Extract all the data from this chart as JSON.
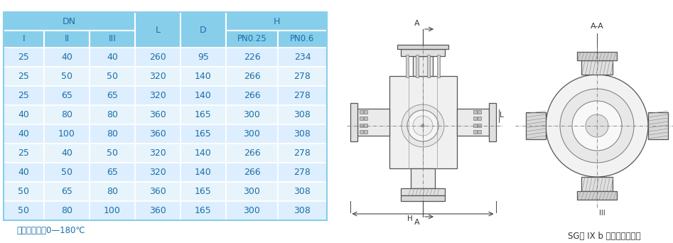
{
  "header_bg": "#87CEEB",
  "row_bg1": "#ddeeff",
  "row_bg2": "#e8f4fb",
  "text_color": "#1a6fa8",
  "note_text": "注：工作温度0—180℃",
  "rows": [
    [
      25,
      40,
      40,
      260,
      95,
      226,
      234
    ],
    [
      25,
      50,
      50,
      320,
      140,
      266,
      278
    ],
    [
      25,
      65,
      65,
      320,
      140,
      266,
      278
    ],
    [
      40,
      80,
      80,
      360,
      165,
      300,
      308
    ],
    [
      40,
      100,
      80,
      360,
      165,
      300,
      308
    ],
    [
      25,
      40,
      50,
      320,
      140,
      266,
      278
    ],
    [
      40,
      50,
      65,
      320,
      140,
      266,
      278
    ],
    [
      50,
      65,
      80,
      360,
      165,
      300,
      308
    ],
    [
      50,
      80,
      100,
      360,
      165,
      300,
      308
    ]
  ],
  "fig_width": 9.47,
  "fig_height": 3.42,
  "font_size": 9,
  "header_font_size": 9,
  "diagram_label": "SG－ IX b 单压三通型视镜",
  "diag_color": "#555555",
  "diag_fill": "#f8f8f8",
  "hatch_color": "#888888"
}
